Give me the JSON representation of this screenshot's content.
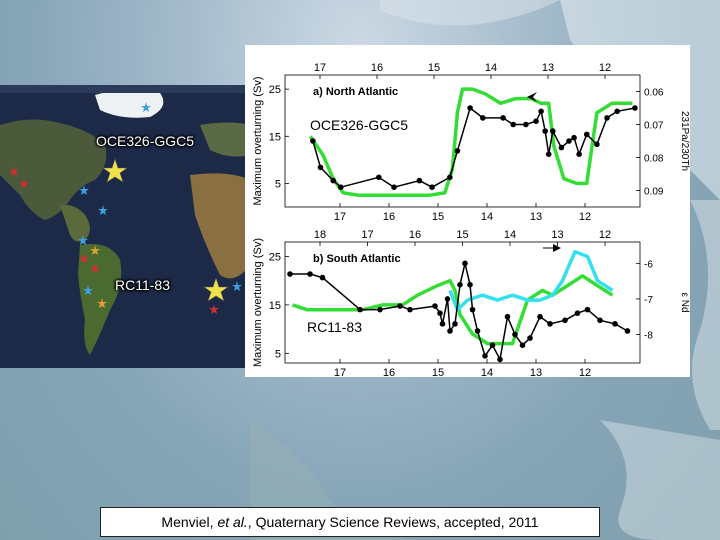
{
  "map": {
    "site1": "OCE326-GGC5",
    "site2": "RC11-83"
  },
  "figure": {
    "inset1": "OCE326-GGC5",
    "inset2": "RC11-83"
  },
  "citation": {
    "author": "Menviel, ",
    "etal": "et al.",
    "rest": ", Quaternary Science Reviews, accepted, 2011"
  },
  "chart_data": [
    {
      "type": "line",
      "title": "a) North Atlantic",
      "ylabel": "Maximum overturning (Sv)",
      "y2label": "231Pa/230Th",
      "x_top_ticks": [
        "17",
        "16",
        "15",
        "14",
        "13",
        "12"
      ],
      "x_bottom_ticks": [
        "17",
        "16",
        "15",
        "14",
        "13",
        "12"
      ],
      "ylim": [
        0,
        28
      ],
      "yticks": [
        "5",
        "15",
        "25"
      ],
      "y2ticks": [
        "0.06",
        "0.07",
        "0.08",
        "0.09"
      ],
      "y2lim": [
        0.095,
        0.055
      ],
      "series": [
        {
          "color": "#33dd33",
          "x": [
            17.75,
            17.5,
            17.3,
            17.1,
            16.8,
            16.5,
            16.2,
            15.8,
            15.4,
            15.1,
            14.95,
            14.85,
            14.75,
            14.55,
            14.3,
            14.0,
            13.7,
            13.4,
            13.2,
            13.05,
            12.95,
            12.75,
            12.5,
            12.3,
            12.1,
            11.8,
            11.4
          ],
          "y": [
            15,
            11,
            6,
            3,
            2.5,
            2.5,
            2.5,
            2.5,
            2.5,
            3,
            8,
            20,
            25,
            25,
            24,
            22,
            23,
            23,
            22,
            22,
            13,
            6,
            5,
            5,
            20,
            22,
            22
          ]
        },
        {
          "color": "#000000",
          "x": [
            17.7,
            17.55,
            17.3,
            17.15,
            16.4,
            16.1,
            15.6,
            15.35,
            15.0,
            14.85,
            14.6,
            14.35,
            13.95,
            13.75,
            13.5,
            13.3,
            13.2,
            13.12,
            13.05,
            12.97,
            12.8,
            12.65,
            12.55,
            12.45,
            12.3,
            12.1,
            11.9,
            11.7,
            11.35
          ],
          "y": [
            0.075,
            0.083,
            0.087,
            0.089,
            0.086,
            0.089,
            0.087,
            0.089,
            0.086,
            0.078,
            0.065,
            0.068,
            0.068,
            0.07,
            0.07,
            0.069,
            0.066,
            0.072,
            0.079,
            0.072,
            0.077,
            0.075,
            0.074,
            0.079,
            0.073,
            0.076,
            0.068,
            0.066,
            0.065
          ]
        }
      ]
    },
    {
      "type": "line",
      "title": "b) South Atlantic",
      "ylabel": "Maximum overturning (Sv)",
      "y2label": "ε Nd",
      "x_top_ticks": [
        "18",
        "17",
        "16",
        "15",
        "14",
        "13",
        "12"
      ],
      "x_bottom_ticks": [
        "17",
        "16",
        "15",
        "14",
        "13",
        "12"
      ],
      "ylim": [
        3,
        28
      ],
      "yticks": [
        "5",
        "15",
        "25"
      ],
      "y2ticks": [
        "-6",
        "-7",
        "-8"
      ],
      "y2lim": [
        -8.8,
        -5.4
      ],
      "series": [
        {
          "color": "#33dd33",
          "x": [
            18.2,
            17.9,
            17.6,
            17.2,
            16.8,
            16.4,
            16.0,
            15.7,
            15.3,
            15.05,
            14.95,
            14.85,
            14.6,
            14.3,
            14.1,
            13.8,
            13.5,
            13.2,
            13.0,
            12.7,
            12.4,
            12.1,
            11.8
          ],
          "y": [
            15,
            14,
            14,
            14,
            14,
            15,
            15,
            17,
            19,
            20,
            18,
            13,
            9,
            7,
            7,
            7,
            16,
            18,
            17,
            19,
            21,
            19,
            17
          ]
        },
        {
          "color": "#33e0f0",
          "x": [
            15.05,
            14.9,
            14.7,
            14.4,
            14.1,
            13.8,
            13.5,
            13.25,
            13.0,
            12.8,
            12.55,
            12.3,
            12.1,
            11.8
          ],
          "y": [
            18,
            14,
            16,
            17,
            16,
            17,
            16,
            16,
            17,
            20,
            26,
            25,
            20,
            18
          ]
        },
        {
          "color": "#000000",
          "x": [
            18.25,
            17.85,
            17.6,
            16.85,
            16.45,
            16.05,
            15.85,
            15.35,
            15.25,
            15.2,
            15.1,
            15.05,
            14.95,
            14.85,
            14.75,
            14.65,
            14.6,
            14.5,
            14.35,
            14.2,
            14.05,
            13.9,
            13.75,
            13.6,
            13.45,
            13.25,
            13.05,
            12.75,
            12.5,
            12.3,
            12.05,
            11.75,
            11.5
          ],
          "y": [
            -6.3,
            -6.3,
            -6.4,
            -7.3,
            -7.3,
            -7.2,
            -7.3,
            -7.2,
            -7.4,
            -7.7,
            -7.0,
            -7.9,
            -7.7,
            -6.6,
            -6.0,
            -6.6,
            -7.3,
            -7.9,
            -8.6,
            -8.3,
            -8.7,
            -7.5,
            -8.0,
            -8.3,
            -8.1,
            -7.5,
            -7.7,
            -7.6,
            -7.4,
            -7.3,
            -7.6,
            -7.7,
            -7.9
          ]
        }
      ]
    }
  ]
}
